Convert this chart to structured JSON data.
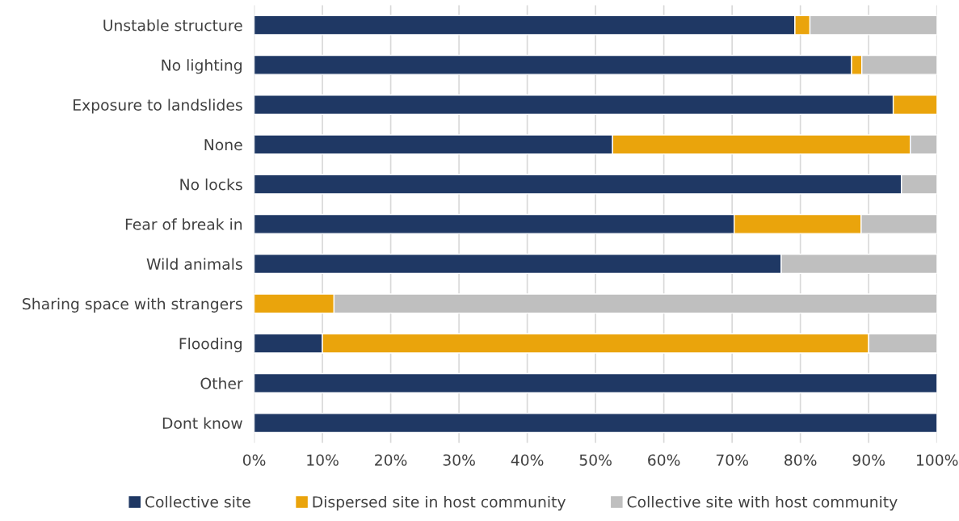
{
  "chart_data": {
    "type": "bar",
    "orientation": "horizontal",
    "stacked": true,
    "categories": [
      "Unstable structure",
      "No lighting",
      "Exposure to landslides",
      "None",
      "No locks",
      "Fear of break in",
      "Wild animals",
      "Sharing space with strangers",
      "Flooding",
      "Other",
      "Dont know"
    ],
    "series": [
      {
        "name": "Collective site",
        "color": "#1f3864",
        "values": [
          79.2,
          87.5,
          93.6,
          52.5,
          94.8,
          70.3,
          77.2,
          null,
          10,
          100,
          100
        ]
      },
      {
        "name": "Dispersed site in host community",
        "color": "#eaa40c",
        "values": [
          2.2,
          1.5,
          6.4,
          43.6,
          null,
          18.6,
          null,
          11.7,
          80,
          null,
          null
        ]
      },
      {
        "name": "Collective site with host community",
        "color": "#bfbfbf",
        "values": [
          18.6,
          11.0,
          null,
          3.9,
          5.2,
          11.1,
          22.8,
          88.3,
          10,
          null,
          null
        ]
      }
    ],
    "xlim": [
      0,
      100
    ],
    "xticks": [
      {
        "value": 0,
        "label": "0%"
      },
      {
        "value": 10,
        "label": "10%"
      },
      {
        "value": 20,
        "label": "20%"
      },
      {
        "value": 30,
        "label": "30%"
      },
      {
        "value": 40,
        "label": "40%"
      },
      {
        "value": 50,
        "label": "50%"
      },
      {
        "value": 60,
        "label": "60%"
      },
      {
        "value": 70,
        "label": "70%"
      },
      {
        "value": 80,
        "label": "80%"
      },
      {
        "value": 90,
        "label": "90%"
      },
      {
        "value": 100,
        "label": "100%"
      }
    ],
    "grid": "x",
    "legend": "bottom"
  }
}
